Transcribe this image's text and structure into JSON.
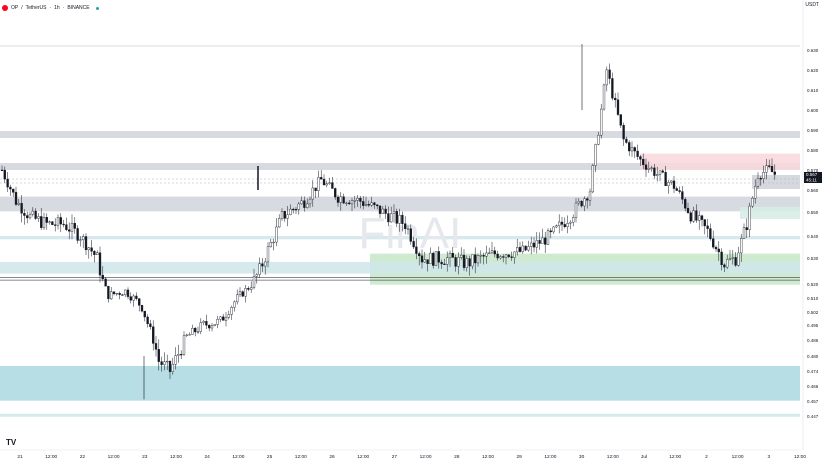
{
  "header": {
    "symbol": "OP",
    "sep1": "/",
    "pair": "TetherUS",
    "sep2": "·",
    "interval": "1h",
    "sep3": "·",
    "exchange": "BINANCE"
  },
  "currency": "USDT",
  "watermark": "FinAI",
  "tv_logo": "TV",
  "price_labels": {
    "last": "0.567",
    "countdown": "45:11"
  },
  "colors": {
    "candle_up": "#26a69a",
    "candle_down": "#131722",
    "zone_grey": "#d1d4dc",
    "zone_teal": "#cfe6ea",
    "zone_teal_strong": "#a9d8df",
    "zone_green": "#c8e6c9",
    "zone_red": "#f8d7da",
    "accent_red": "#ff0420"
  },
  "chart_data": {
    "type": "candlestick",
    "timeframe": "1h",
    "y_ticks": [
      "0.630",
      "0.620",
      "0.610",
      "0.600",
      "0.590",
      "0.580",
      "0.570",
      "0.560",
      "0.550",
      "0.540",
      "0.530",
      "0.520",
      "0.510",
      "0.502",
      "0.495",
      "0.486",
      "0.480",
      "0.474",
      "0.466",
      "0.457",
      "0.447"
    ],
    "x_ticks": [
      "21",
      "12:00",
      "22",
      "12:00",
      "23",
      "12:00",
      "24",
      "12:00",
      "25",
      "12:00",
      "26",
      "12:00",
      "27",
      "12:00",
      "28",
      "12:00",
      "29",
      "12:00",
      "30",
      "12:00",
      "Jul",
      "12:00",
      "2",
      "12:00",
      "3",
      "12:00"
    ],
    "ohlc_path": [
      [
        0,
        0.57
      ],
      [
        5,
        0.555
      ],
      [
        10,
        0.548
      ],
      [
        16,
        0.545
      ],
      [
        22,
        0.545
      ],
      [
        28,
        0.54
      ],
      [
        34,
        0.53
      ],
      [
        38,
        0.512
      ],
      [
        44,
        0.515
      ],
      [
        50,
        0.505
      ],
      [
        56,
        0.478
      ],
      [
        60,
        0.474
      ],
      [
        66,
        0.488
      ],
      [
        72,
        0.495
      ],
      [
        78,
        0.497
      ],
      [
        84,
        0.51
      ],
      [
        92,
        0.525
      ],
      [
        100,
        0.548
      ],
      [
        108,
        0.555
      ],
      [
        114,
        0.565
      ],
      [
        120,
        0.557
      ],
      [
        128,
        0.555
      ],
      [
        136,
        0.55
      ],
      [
        144,
        0.545
      ],
      [
        150,
        0.53
      ],
      [
        158,
        0.53
      ],
      [
        166,
        0.528
      ],
      [
        176,
        0.532
      ],
      [
        186,
        0.533
      ],
      [
        196,
        0.54
      ],
      [
        204,
        0.55
      ],
      [
        210,
        0.56
      ],
      [
        214,
        0.6
      ],
      [
        216,
        0.62
      ],
      [
        222,
        0.585
      ],
      [
        228,
        0.575
      ],
      [
        234,
        0.568
      ],
      [
        240,
        0.562
      ],
      [
        246,
        0.549
      ],
      [
        252,
        0.542
      ],
      [
        258,
        0.528
      ],
      [
        262,
        0.53
      ],
      [
        266,
        0.545
      ],
      [
        270,
        0.568
      ],
      [
        274,
        0.57
      ],
      [
        278,
        0.566
      ]
    ],
    "zones": [
      {
        "kind": "grey",
        "from": 0.586,
        "to": 0.5895
      },
      {
        "kind": "grey",
        "from": 0.57,
        "to": 0.5735
      },
      {
        "kind": "red",
        "from": 0.57,
        "to": 0.5782
      },
      {
        "kind": "grey",
        "from": 0.5503,
        "to": 0.557
      },
      {
        "kind": "teal",
        "from": 0.5385,
        "to": 0.54
      },
      {
        "kind": "green",
        "from": 0.5195,
        "to": 0.532
      },
      {
        "kind": "teal",
        "from": 0.524,
        "to": 0.5285
      },
      {
        "kind": "teal_strong",
        "from": 0.4572,
        "to": 0.476
      },
      {
        "kind": "teal",
        "from": 0.4465,
        "to": 0.4485
      }
    ],
    "lines": [
      0.5655,
      0.5635,
      0.5225,
      0.5215
    ],
    "last_price": 0.567
  }
}
